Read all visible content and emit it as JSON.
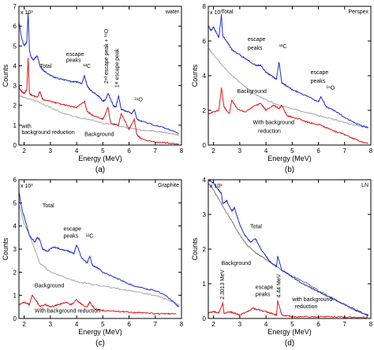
{
  "chart_data": [
    {
      "type": "line",
      "panel_label": "(a)",
      "corner_label": "water",
      "exponent_label": "x 10³",
      "xlabel": "Energy (MeV)",
      "ylabel": "Counts",
      "xlim": [
        1.8,
        8
      ],
      "ylim": [
        0,
        7
      ],
      "xticks": [
        2,
        3,
        4,
        5,
        6,
        7,
        8
      ],
      "yticks": [
        0,
        1,
        2,
        3,
        4,
        5,
        6,
        7
      ],
      "colors": {
        "Total": "#1f2fd0",
        "with background reduction": "#e01818",
        "Background": "#a8a8a8"
      },
      "series": [
        {
          "name": "Total",
          "x": [
            1.8,
            1.9,
            2.0,
            2.1,
            2.15,
            2.2,
            2.25,
            2.35,
            2.5,
            2.6,
            2.7,
            2.8,
            3.0,
            3.2,
            3.5,
            3.8,
            4.0,
            4.2,
            4.3,
            4.4,
            4.5,
            4.7,
            4.9,
            5.0,
            5.1,
            5.2,
            5.4,
            5.5,
            5.6,
            5.7,
            5.9,
            6.1,
            6.2,
            6.3,
            6.5,
            7.0,
            7.5,
            7.9
          ],
          "y": [
            6.2,
            5.4,
            5.0,
            5.2,
            6.7,
            4.8,
            4.5,
            4.3,
            4.5,
            4.0,
            3.8,
            3.7,
            3.5,
            3.4,
            3.3,
            3.2,
            3.2,
            3.1,
            3.5,
            3.0,
            2.8,
            2.6,
            2.4,
            2.2,
            2.3,
            2.6,
            2.0,
            1.9,
            2.5,
            1.8,
            1.7,
            1.6,
            1.8,
            1.3,
            1.2,
            1.0,
            0.8,
            0.6
          ]
        },
        {
          "name": "with background reduction",
          "x": [
            1.8,
            1.9,
            2.0,
            2.1,
            2.15,
            2.2,
            2.3,
            2.5,
            2.6,
            2.7,
            3.0,
            3.3,
            3.6,
            4.0,
            4.3,
            4.4,
            4.6,
            5.0,
            5.2,
            5.3,
            5.6,
            5.7,
            6.0,
            6.2,
            6.3,
            6.5,
            7.0,
            7.5,
            7.9
          ],
          "y": [
            2.9,
            2.7,
            2.6,
            2.8,
            4.4,
            2.6,
            2.5,
            2.4,
            2.7,
            2.3,
            2.2,
            2.1,
            2.0,
            1.9,
            2.2,
            1.7,
            1.5,
            1.3,
            1.9,
            1.1,
            1.0,
            1.6,
            0.8,
            1.3,
            0.5,
            0.3,
            0.15,
            0.1,
            0.05
          ]
        },
        {
          "name": "Background",
          "x": [
            1.8,
            2.0,
            2.5,
            3.0,
            3.5,
            4.0,
            4.5,
            5.0,
            5.5,
            6.0,
            6.5,
            7.0,
            7.5,
            7.9
          ],
          "y": [
            2.5,
            2.4,
            2.2,
            1.9,
            1.6,
            1.4,
            1.3,
            1.1,
            1.0,
            0.85,
            0.75,
            0.7,
            0.6,
            0.5
          ]
        }
      ],
      "annotations": [
        {
          "text": "Total",
          "x": 2.6,
          "y": 3.9
        },
        {
          "text": "escape",
          "x": 3.6,
          "y": 4.5
        },
        {
          "text": "peaks",
          "x": 3.6,
          "y": 4.2
        },
        {
          "text": "¹²C",
          "x": 4.25,
          "y": 3.9
        },
        {
          "text": "2ⁿᵈ escape peak + ¹⁶O",
          "x": 5.2,
          "y": 3.1,
          "rotate": true
        },
        {
          "text": "1ˢᵗ escape peak",
          "x": 5.6,
          "y": 2.9,
          "rotate": true
        },
        {
          "text": "¹⁶O",
          "x": 6.2,
          "y": 2.2
        },
        {
          "text": "with",
          "x": 1.9,
          "y": 0.85
        },
        {
          "text": "background reduction",
          "x": 1.9,
          "y": 0.55
        },
        {
          "text": "Background",
          "x": 4.3,
          "y": 0.45
        }
      ]
    },
    {
      "type": "line",
      "panel_label": "(b)",
      "corner_label": "Perspex",
      "exponent_label": "x 10³",
      "xlabel": "Energy (MeV)",
      "ylabel": "Counts",
      "xlim": [
        1.8,
        8
      ],
      "ylim": [
        0,
        8
      ],
      "xticks": [
        2,
        3,
        4,
        5,
        6,
        7,
        8
      ],
      "yticks": [
        0,
        2,
        4,
        6,
        8
      ],
      "colors": {
        "Total": "#1f2fd0",
        "With background reduction": "#e01818",
        "Background": "#a8a8a8"
      },
      "series": [
        {
          "name": "Total",
          "x": [
            1.8,
            1.9,
            2.0,
            2.1,
            2.2,
            2.3,
            2.35,
            2.5,
            2.7,
            3.0,
            3.3,
            3.6,
            3.8,
            4.0,
            4.2,
            4.4,
            4.5,
            4.6,
            4.8,
            5.0,
            5.3,
            5.6,
            6.0,
            6.1,
            6.3,
            6.6,
            7.0,
            7.5,
            7.9
          ],
          "y": [
            6.9,
            6.6,
            6.8,
            6.5,
            6.2,
            7.5,
            6.3,
            6.0,
            5.5,
            5.2,
            4.9,
            4.6,
            4.6,
            4.2,
            4.0,
            3.8,
            4.8,
            3.6,
            3.4,
            3.2,
            3.0,
            2.8,
            2.5,
            2.8,
            2.2,
            2.0,
            1.6,
            1.2,
            1.0
          ]
        },
        {
          "name": "With background reduction",
          "x": [
            1.8,
            2.0,
            2.2,
            2.3,
            2.4,
            2.6,
            2.7,
            2.9,
            3.2,
            3.5,
            3.8,
            4.0,
            4.3,
            4.5,
            4.6,
            4.8,
            5.0,
            5.3,
            5.6,
            6.0,
            6.3,
            6.6,
            7.0,
            7.3,
            7.6,
            7.9
          ],
          "y": [
            1.8,
            1.9,
            2.0,
            3.3,
            2.2,
            1.8,
            2.6,
            2.1,
            1.9,
            2.2,
            2.4,
            2.0,
            2.3,
            2.1,
            2.3,
            1.7,
            1.6,
            1.5,
            1.3,
            1.2,
            1.0,
            0.8,
            0.6,
            0.4,
            0.2,
            0.1
          ]
        },
        {
          "name": "Background",
          "x": [
            1.8,
            2.0,
            2.5,
            3.0,
            3.5,
            4.0,
            4.5,
            5.0,
            5.5,
            6.0,
            6.5,
            7.0,
            7.5,
            7.9
          ],
          "y": [
            5.6,
            5.2,
            4.3,
            3.6,
            3.0,
            2.6,
            2.3,
            2.1,
            1.9,
            1.7,
            1.5,
            1.3,
            1.1,
            1.0
          ]
        }
      ],
      "annotations": [
        {
          "text": "Total",
          "x": 2.3,
          "y": 7.6
        },
        {
          "text": "escape",
          "x": 3.3,
          "y": 6.0
        },
        {
          "text": "peaks",
          "x": 3.3,
          "y": 5.5
        },
        {
          "text": "¹²C",
          "x": 4.5,
          "y": 5.6
        },
        {
          "text": "escape",
          "x": 5.7,
          "y": 4.1
        },
        {
          "text": "peaks",
          "x": 5.7,
          "y": 3.6
        },
        {
          "text": "¹⁶O",
          "x": 6.3,
          "y": 3.2
        },
        {
          "text": "Background",
          "x": 2.9,
          "y": 3.0
        },
        {
          "text": "With background",
          "x": 3.5,
          "y": 1.2
        },
        {
          "text": "reduction",
          "x": 3.7,
          "y": 0.7
        }
      ]
    },
    {
      "type": "line",
      "panel_label": "(c)",
      "corner_label": "Graphite",
      "exponent_label": "x 10³",
      "xlabel": "Energy (MeV)",
      "ylabel": "Counts",
      "xlim": [
        1.8,
        8
      ],
      "ylim": [
        0,
        6
      ],
      "xticks": [
        2,
        3,
        4,
        5,
        6,
        7,
        8
      ],
      "yticks": [
        0,
        1,
        2,
        3,
        4,
        5,
        6
      ],
      "colors": {
        "Total": "#1f2fd0",
        "With background reduction": "#e01818",
        "Background": "#a8a8a8"
      },
      "series": [
        {
          "name": "Total",
          "x": [
            1.8,
            1.9,
            2.0,
            2.1,
            2.2,
            2.4,
            2.5,
            2.6,
            2.7,
            2.9,
            3.1,
            3.4,
            3.7,
            3.9,
            4.0,
            4.2,
            4.4,
            4.5,
            4.6,
            4.8,
            5.0,
            5.4,
            5.8,
            6.2,
            6.6,
            7.0,
            7.4,
            7.8,
            7.9
          ],
          "y": [
            5.5,
            4.8,
            4.4,
            4.0,
            3.6,
            3.3,
            3.5,
            3.4,
            3.0,
            2.9,
            3.1,
            3.0,
            2.9,
            2.8,
            3.2,
            2.6,
            2.4,
            2.7,
            2.3,
            2.2,
            2.0,
            1.8,
            1.6,
            1.4,
            1.3,
            1.2,
            1.0,
            0.6,
            0.5
          ]
        },
        {
          "name": "With background reduction",
          "x": [
            1.8,
            2.0,
            2.2,
            2.3,
            2.5,
            2.6,
            2.8,
            3.0,
            3.3,
            3.6,
            3.8,
            4.0,
            4.2,
            4.4,
            4.5,
            4.7,
            5.0,
            5.4,
            5.8,
            6.2,
            6.6,
            7.0,
            7.4,
            7.8
          ],
          "y": [
            0.6,
            0.7,
            0.6,
            1.0,
            0.7,
            0.5,
            0.6,
            0.5,
            0.6,
            0.7,
            0.6,
            0.8,
            0.6,
            0.5,
            0.7,
            0.4,
            0.35,
            0.3,
            0.3,
            0.25,
            0.25,
            0.2,
            0.2,
            0.2
          ]
        },
        {
          "name": "Background",
          "x": [
            1.8,
            2.0,
            2.2,
            2.4,
            2.6,
            3.0,
            3.5,
            4.0,
            4.5,
            5.0,
            5.5,
            6.0,
            6.5,
            7.0,
            7.5,
            7.9
          ],
          "y": [
            4.9,
            4.1,
            3.6,
            3.0,
            2.4,
            2.0,
            1.8,
            1.6,
            1.5,
            1.4,
            1.3,
            1.2,
            1.1,
            1.0,
            0.8,
            0.6
          ]
        }
      ],
      "annotations": [
        {
          "text": "Total",
          "x": 2.7,
          "y": 4.8
        },
        {
          "text": "escape",
          "x": 3.5,
          "y": 3.8
        },
        {
          "text": "peaks",
          "x": 3.5,
          "y": 3.5
        },
        {
          "text": "¹²C",
          "x": 4.35,
          "y": 3.5
        },
        {
          "text": "Background",
          "x": 2.4,
          "y": 1.35
        },
        {
          "text": "With background reduction",
          "x": 2.4,
          "y": 0.25
        }
      ]
    },
    {
      "type": "line",
      "panel_label": "(d)",
      "corner_label": "LN",
      "exponent_label": "x 10³",
      "xlabel": "Energy (MeV)",
      "ylabel": "Counts",
      "xlim": [
        1.8,
        8
      ],
      "ylim": [
        0,
        4
      ],
      "xticks": [
        2,
        3,
        4,
        5,
        6,
        7,
        8
      ],
      "yticks": [
        0,
        1,
        2,
        3,
        4
      ],
      "colors": {
        "Total": "#1f2fd0",
        "with background reduction": "#e01818",
        "Background": "#7a7a7a"
      },
      "series": [
        {
          "name": "Total",
          "x": [
            1.8,
            2.0,
            2.2,
            2.3,
            2.35,
            2.5,
            2.7,
            2.8,
            3.0,
            3.2,
            3.4,
            3.6,
            3.8,
            4.0,
            4.2,
            4.4,
            4.45,
            4.6,
            4.8,
            5.0,
            5.4,
            5.8,
            6.2,
            6.6,
            7.0,
            7.4,
            7.8,
            7.9
          ],
          "y": [
            4.0,
            3.9,
            3.7,
            3.6,
            3.3,
            3.4,
            3.1,
            3.2,
            2.7,
            2.4,
            2.2,
            2.3,
            2.0,
            1.8,
            1.6,
            1.5,
            1.8,
            1.4,
            1.3,
            1.2,
            1.0,
            0.85,
            0.7,
            0.55,
            0.4,
            0.25,
            0.12,
            0.08
          ]
        },
        {
          "name": "Background",
          "x": [
            1.8,
            2.0,
            2.3,
            2.7,
            3.0,
            3.3,
            3.6,
            4.0,
            4.4,
            4.8,
            5.2,
            5.6,
            6.0,
            6.5,
            7.0,
            7.5,
            7.9
          ],
          "y": [
            3.9,
            3.7,
            3.3,
            2.8,
            2.4,
            2.1,
            1.9,
            1.7,
            1.5,
            1.3,
            1.15,
            1.0,
            0.8,
            0.6,
            0.4,
            0.2,
            0.1
          ]
        },
        {
          "name": "with background reduction",
          "x": [
            1.8,
            2.0,
            2.2,
            2.35,
            2.4,
            2.6,
            2.8,
            3.0,
            3.3,
            3.5,
            3.7,
            4.0,
            4.2,
            4.4,
            4.45,
            4.6,
            5.0,
            5.5,
            6.0,
            6.5,
            7.0,
            7.5,
            7.9
          ],
          "y": [
            0.15,
            0.2,
            0.15,
            0.45,
            0.15,
            0.2,
            0.15,
            0.1,
            0.2,
            0.3,
            0.25,
            0.2,
            0.15,
            0.1,
            0.5,
            0.1,
            0.05,
            0.05,
            0.05,
            0.05,
            0.04,
            0.03,
            0.03
          ]
        }
      ],
      "annotations": [
        {
          "text": "Total",
          "x": 3.4,
          "y": 2.6
        },
        {
          "text": "Background",
          "x": 2.3,
          "y": 1.55
        },
        {
          "text": "2.3013 MeV",
          "x": 2.4,
          "y": 0.55,
          "rotate": true
        },
        {
          "text": "4.44 MeV",
          "x": 4.55,
          "y": 0.6,
          "rotate": true
        },
        {
          "text": "escape",
          "x": 3.6,
          "y": 0.85
        },
        {
          "text": "peaks",
          "x": 3.6,
          "y": 0.65
        },
        {
          "text": "with background",
          "x": 5.0,
          "y": 0.5
        },
        {
          "text": "reduction",
          "x": 5.1,
          "y": 0.3
        }
      ]
    }
  ]
}
